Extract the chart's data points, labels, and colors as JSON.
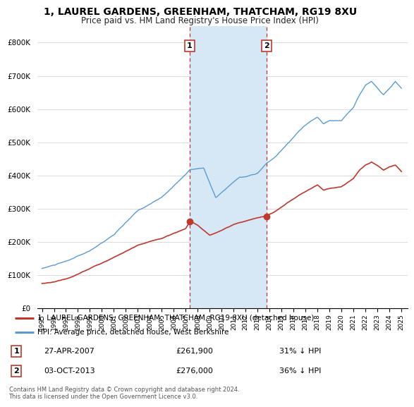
{
  "title": "1, LAUREL GARDENS, GREENHAM, THATCHAM, RG19 8XU",
  "subtitle": "Price paid vs. HM Land Registry's House Price Index (HPI)",
  "hpi_label": "HPI: Average price, detached house, West Berkshire",
  "property_label": "1, LAUREL GARDENS, GREENHAM, THATCHAM, RG19 8XU (detached house)",
  "purchase1_date": "27-APR-2007",
  "purchase1_price": 261900,
  "purchase1_hpi_pct": "31% ↓ HPI",
  "purchase2_date": "03-OCT-2013",
  "purchase2_price": 276000,
  "purchase2_hpi_pct": "36% ↓ HPI",
  "copyright_text": "Contains HM Land Registry data © Crown copyright and database right 2024.\nThis data is licensed under the Open Government Licence v3.0.",
  "hpi_color": "#5b9bd5",
  "property_color": "#c0392b",
  "shading_color": "#d6e8f5",
  "purchase1_x": 2007.32,
  "purchase2_x": 2013.75,
  "ylim_max": 850000,
  "ylim_min": 0,
  "xlim_min": 1994.6,
  "xlim_max": 2025.5
}
